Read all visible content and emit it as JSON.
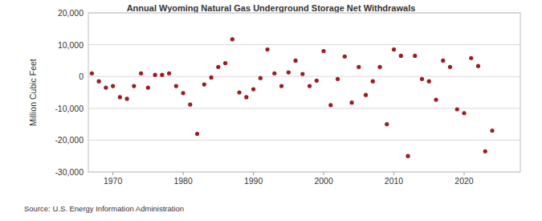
{
  "chart_data": {
    "type": "scatter",
    "title": "Annual Wyoming Natural Gas Underground Storage Net Withdrawals",
    "y_label": "Million Cubic Feet",
    "source": "Source: U.S. Energy Information Administration",
    "x": [
      1967,
      1968,
      1969,
      1970,
      1971,
      1972,
      1973,
      1974,
      1975,
      1976,
      1977,
      1978,
      1979,
      1980,
      1981,
      1982,
      1983,
      1984,
      1985,
      1986,
      1987,
      1988,
      1989,
      1990,
      1991,
      1992,
      1993,
      1994,
      1995,
      1996,
      1997,
      1998,
      1999,
      2000,
      2001,
      2002,
      2003,
      2004,
      2005,
      2006,
      2007,
      2008,
      2009,
      2010,
      2011,
      2012,
      2013,
      2014,
      2015,
      2016,
      2017,
      2018,
      2019,
      2020,
      2021,
      2022,
      2023,
      2024
    ],
    "values": [
      1000,
      -1500,
      -3500,
      -3000,
      -6500,
      -7000,
      -3000,
      1000,
      -3500,
      500,
      500,
      1000,
      -3000,
      -5200,
      -8800,
      -18000,
      -2500,
      -300,
      3000,
      4200,
      11700,
      -5000,
      -6500,
      -4000,
      -500,
      8500,
      1000,
      -3000,
      1300,
      5000,
      800,
      -3000,
      -1300,
      8000,
      -9000,
      -800,
      6300,
      -8200,
      3000,
      -5800,
      -1500,
      3000,
      -15000,
      8500,
      6500,
      -25000,
      6500,
      -800,
      -1500,
      -7300,
      5000,
      3000,
      -10300,
      -11500,
      5800,
      3300,
      -23500,
      -17000
    ],
    "color": "#9e1b22",
    "marker": "circle",
    "xlim": [
      1966.5,
      2028
    ],
    "xticks": [
      1970,
      1980,
      1990,
      2000,
      2010,
      2020
    ],
    "ylim": [
      -30000,
      20000
    ],
    "yticks": [
      {
        "value": -30000,
        "label": "-30,000"
      },
      {
        "value": -20000,
        "label": "-20,000"
      },
      {
        "value": -10000,
        "label": "-10,000"
      },
      0,
      {
        "value": 10000,
        "label": "10,000"
      },
      {
        "value": 20000,
        "label": "20,000"
      }
    ],
    "grid": true
  }
}
